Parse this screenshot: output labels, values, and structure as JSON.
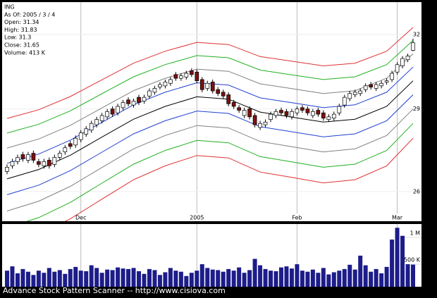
{
  "header": {
    "lines": [
      "ING",
      "As Of: 2005 / 3 / 4",
      "Open: 31.34",
      "High: 31.83",
      "Low: 31.3",
      "Close: 31.65",
      "Volume: 413 K"
    ]
  },
  "footer": "Advance Stock Pattern Scanner -- http://www.cisiova.com",
  "chart_data": [
    {
      "type": "candlestick",
      "log": true,
      "grid": true,
      "up_color": "#ffffff",
      "down_color": "#7a1010",
      "categories": [
        null,
        null,
        null,
        null,
        null,
        null,
        null,
        null,
        null,
        null,
        null,
        null,
        null,
        null,
        "Dec",
        null,
        null,
        null,
        null,
        null,
        null,
        null,
        null,
        null,
        null,
        null,
        null,
        null,
        null,
        null,
        null,
        null,
        null,
        null,
        null,
        null,
        "2005",
        null,
        null,
        null,
        null,
        null,
        null,
        null,
        null,
        null,
        null,
        null,
        null,
        null,
        null,
        null,
        null,
        null,
        null,
        "Feb",
        null,
        null,
        null,
        null,
        null,
        null,
        null,
        null,
        null,
        null,
        null,
        null,
        null,
        null,
        null,
        null,
        null,
        null,
        "Mar",
        null,
        null,
        null
      ],
      "open": [
        26.7,
        26.9,
        27.05,
        27.3,
        27.1,
        27.35,
        27.05,
        26.9,
        27.1,
        26.95,
        27.2,
        27.4,
        27.7,
        27.65,
        27.85,
        28.05,
        28.2,
        28.4,
        28.55,
        28.7,
        29.0,
        28.85,
        29.05,
        29.35,
        29.15,
        29.45,
        29.3,
        29.5,
        29.65,
        29.85,
        29.9,
        30.0,
        30.35,
        30.2,
        30.25,
        30.5,
        30.45,
        30.15,
        29.8,
        30.05,
        29.75,
        29.65,
        29.55,
        29.25,
        29.05,
        28.75,
        29.0,
        28.75,
        28.3,
        28.4,
        28.6,
        28.75,
        28.95,
        28.9,
        28.7,
        28.85,
        29.05,
        29.0,
        28.75,
        28.95,
        28.85,
        28.6,
        28.65,
        28.85,
        29.15,
        29.4,
        29.55,
        29.6,
        29.75,
        29.95,
        29.8,
        29.9,
        30.05,
        30.15,
        30.45,
        30.7,
        30.95,
        31.34
      ],
      "high": [
        26.95,
        27.15,
        27.3,
        27.4,
        27.4,
        27.45,
        27.15,
        27.15,
        27.2,
        27.3,
        27.45,
        27.65,
        27.8,
        28.0,
        28.2,
        28.35,
        28.55,
        28.7,
        28.85,
        29.0,
        29.1,
        29.2,
        29.35,
        29.45,
        29.4,
        29.55,
        29.55,
        29.8,
        29.9,
        30.05,
        30.15,
        30.25,
        30.45,
        30.4,
        30.5,
        30.6,
        30.55,
        30.25,
        30.1,
        30.15,
        29.85,
        29.75,
        29.65,
        29.35,
        29.15,
        29.05,
        29.1,
        28.85,
        28.55,
        28.6,
        28.9,
        29.0,
        29.05,
        29.0,
        29.0,
        29.1,
        29.15,
        29.1,
        29.0,
        29.05,
        28.95,
        28.8,
        28.9,
        29.2,
        29.55,
        29.7,
        29.75,
        29.8,
        30.0,
        30.05,
        30.05,
        30.1,
        30.2,
        30.5,
        30.85,
        31.1,
        31.2,
        31.83
      ],
      "low": [
        26.6,
        26.8,
        26.95,
        27.05,
        27.0,
        27.0,
        26.85,
        26.8,
        26.8,
        26.85,
        27.1,
        27.3,
        27.5,
        27.55,
        27.75,
        27.95,
        28.1,
        28.3,
        28.45,
        28.6,
        28.7,
        28.75,
        28.95,
        29.1,
        29.05,
        29.15,
        29.2,
        29.4,
        29.55,
        29.75,
        29.8,
        29.9,
        30.1,
        30.1,
        30.15,
        30.25,
        30.0,
        29.65,
        29.7,
        29.6,
        29.5,
        29.4,
        29.1,
        29.0,
        28.85,
        28.65,
        28.6,
        28.3,
        28.2,
        28.3,
        28.5,
        28.65,
        28.75,
        28.65,
        28.6,
        28.75,
        28.85,
        28.75,
        28.65,
        28.7,
        28.55,
        28.5,
        28.55,
        28.75,
        29.05,
        29.3,
        29.45,
        29.5,
        29.65,
        29.75,
        29.7,
        29.8,
        29.95,
        30.05,
        30.35,
        30.6,
        30.85,
        31.3
      ],
      "close": [
        26.85,
        27.05,
        27.2,
        27.15,
        27.3,
        27.1,
        26.95,
        27.05,
        26.9,
        27.2,
        27.35,
        27.55,
        27.6,
        27.9,
        28.1,
        28.25,
        28.45,
        28.6,
        28.75,
        28.9,
        28.8,
        29.1,
        29.25,
        29.2,
        29.3,
        29.25,
        29.45,
        29.7,
        29.8,
        29.95,
        30.05,
        30.15,
        30.2,
        30.3,
        30.4,
        30.35,
        30.1,
        29.75,
        30.0,
        29.7,
        29.6,
        29.5,
        29.2,
        29.1,
        28.95,
        28.95,
        28.7,
        28.4,
        28.45,
        28.5,
        28.8,
        28.9,
        28.85,
        28.75,
        28.9,
        29.0,
        28.95,
        28.85,
        28.9,
        28.8,
        28.65,
        28.7,
        28.8,
        29.1,
        29.45,
        29.6,
        29.65,
        29.7,
        29.9,
        29.85,
        29.95,
        30.0,
        30.1,
        30.4,
        30.75,
        31.0,
        31.1,
        31.65
      ],
      "ylim": [
        25,
        33.4
      ],
      "yticks": [
        26,
        29,
        32
      ],
      "bands": {
        "x": [
          0,
          6,
          12,
          18,
          24,
          30,
          36,
          42,
          48,
          54,
          60,
          66,
          72,
          77
        ],
        "series": [
          {
            "color": "#e03030",
            "values": [
              28.64,
              28.97,
              29.48,
              30.14,
              30.81,
              31.3,
              31.67,
              31.58,
              31.08,
              30.89,
              30.7,
              30.81,
              31.3,
              32.3
            ]
          },
          {
            "color": "#20b020",
            "values": [
              28.09,
              28.42,
              28.93,
              29.59,
              30.26,
              30.75,
              31.12,
              31.03,
              30.53,
              30.34,
              30.15,
              30.26,
              30.75,
              31.75
            ]
          },
          {
            "color": "#808080",
            "values": [
              27.54,
              27.87,
              28.38,
              29.04,
              29.71,
              30.2,
              30.57,
              30.48,
              29.98,
              29.79,
              29.6,
              29.71,
              30.2,
              31.2
            ]
          },
          {
            "color": "#2040d0",
            "values": [
              26.99,
              27.32,
              27.83,
              28.49,
              29.16,
              29.65,
              30.02,
              29.93,
              29.43,
              29.24,
              29.05,
              29.16,
              29.65,
              30.65
            ]
          },
          {
            "color": "#000000",
            "values": [
              26.44,
              26.77,
              27.28,
              27.94,
              28.61,
              29.1,
              29.47,
              29.38,
              28.88,
              28.69,
              28.5,
              28.61,
              29.1,
              30.1
            ]
          },
          {
            "color": "#2040d0",
            "values": [
              25.89,
              26.22,
              26.73,
              27.39,
              28.06,
              28.55,
              28.92,
              28.83,
              28.33,
              28.14,
              27.95,
              28.06,
              28.55,
              29.55
            ]
          },
          {
            "color": "#808080",
            "values": [
              25.34,
              25.67,
              26.18,
              26.84,
              27.51,
              28.0,
              28.37,
              28.28,
              27.78,
              27.59,
              27.4,
              27.51,
              28.0,
              29.0
            ]
          },
          {
            "color": "#20b020",
            "values": [
              24.79,
              25.12,
              25.63,
              26.29,
              26.96,
              27.45,
              27.82,
              27.73,
              27.23,
              27.04,
              26.85,
              26.96,
              27.45,
              28.45
            ]
          },
          {
            "color": "#e03030",
            "values": [
              24.24,
              24.57,
              25.08,
              25.74,
              26.41,
              26.9,
              27.27,
              27.18,
              26.68,
              26.49,
              26.3,
              26.41,
              26.9,
              27.9
            ]
          }
        ]
      }
    },
    {
      "type": "bar",
      "color": "#1c1c8a",
      "values": [
        300000,
        380000,
        250000,
        330000,
        280000,
        220000,
        300000,
        260000,
        350000,
        280000,
        310000,
        240000,
        330000,
        370000,
        300000,
        290000,
        400000,
        350000,
        260000,
        320000,
        310000,
        360000,
        340000,
        330000,
        350000,
        290000,
        240000,
        330000,
        310000,
        220000,
        270000,
        350000,
        300000,
        280000,
        200000,
        260000,
        300000,
        420000,
        350000,
        320000,
        310000,
        280000,
        330000,
        300000,
        360000,
        260000,
        310000,
        520000,
        400000,
        330000,
        300000,
        290000,
        360000,
        380000,
        340000,
        420000,
        300000,
        280000,
        320000,
        260000,
        350000,
        230000,
        270000,
        300000,
        330000,
        410000,
        320000,
        580000,
        400000,
        280000,
        330000,
        250000,
        370000,
        880000,
        1100000,
        950000,
        420000,
        413000
      ],
      "ylim": [
        0,
        1170000
      ],
      "yticks": [
        {
          "value": 500000,
          "label": "500 K"
        },
        {
          "value": 1000000,
          "label": "1 M"
        }
      ]
    }
  ]
}
